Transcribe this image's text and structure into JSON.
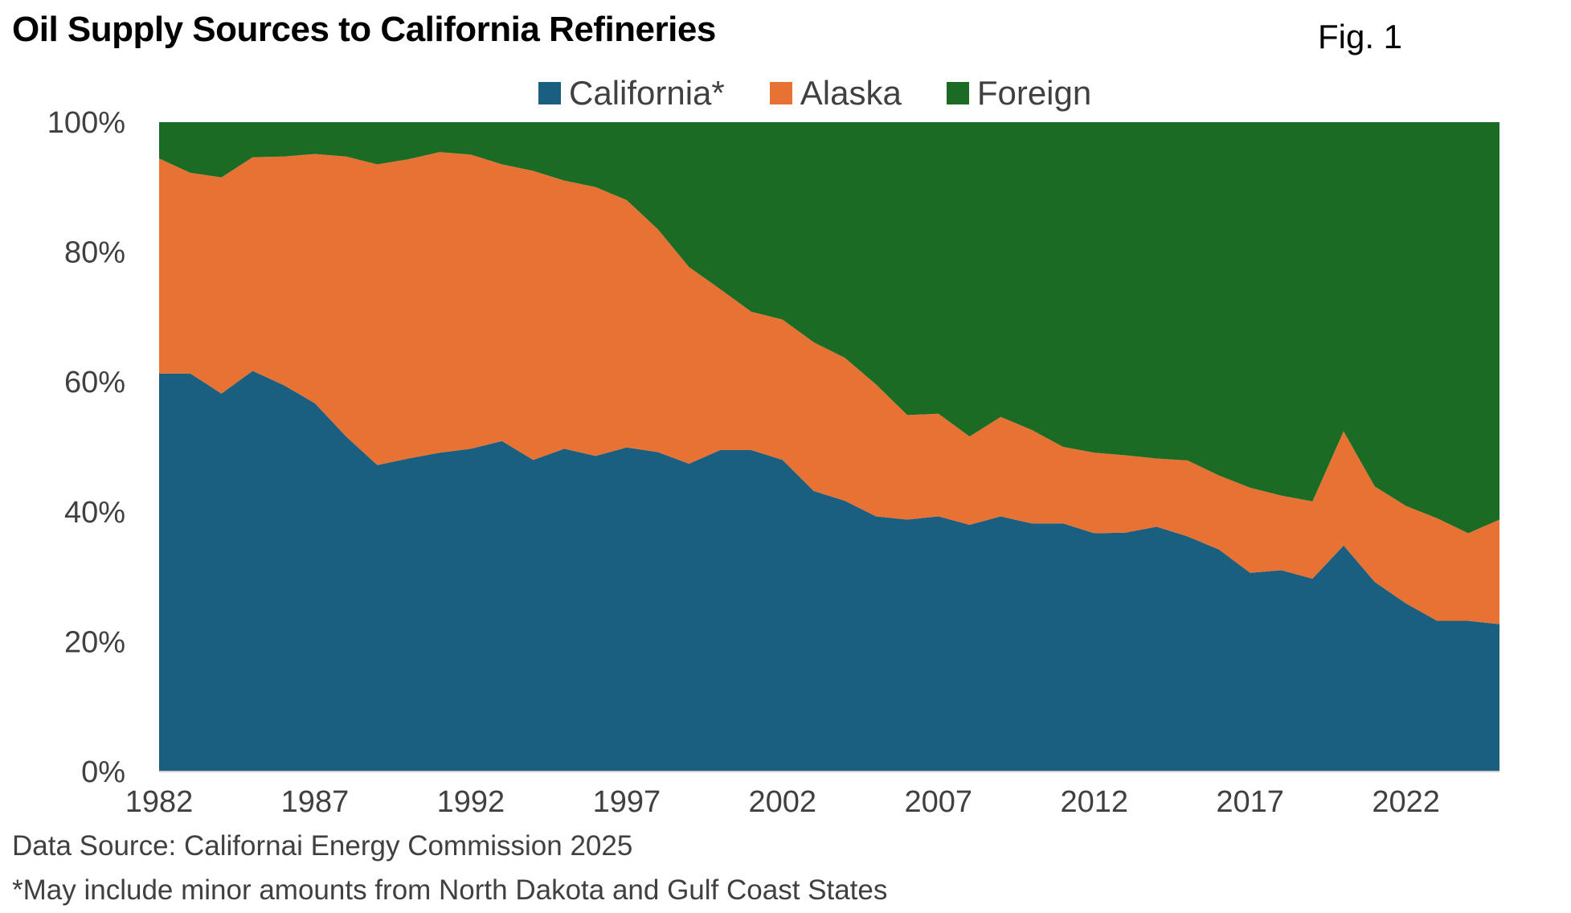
{
  "title": "Oil Supply Sources to California Refineries",
  "figure_label": "Fig. 1",
  "footnotes": {
    "source": "Data Source: Californai Energy Commission 2025",
    "note": "*May include minor amounts from North Dakota and Gulf Coast States"
  },
  "colors": {
    "california": "#1a5e80",
    "alaska": "#e87233",
    "foreign": "#1c6b25"
  },
  "chart_data": {
    "type": "area",
    "stacked": true,
    "title": "Oil Supply Sources to California Refineries",
    "x": [
      1982,
      1983,
      1984,
      1985,
      1986,
      1987,
      1988,
      1989,
      1990,
      1991,
      1992,
      1993,
      1994,
      1995,
      1996,
      1997,
      1998,
      1999,
      2000,
      2001,
      2002,
      2003,
      2004,
      2005,
      2006,
      2007,
      2008,
      2009,
      2010,
      2011,
      2012,
      2013,
      2014,
      2015,
      2016,
      2017,
      2018,
      2019,
      2020,
      2021,
      2022,
      2023,
      2024,
      2025
    ],
    "xticks": [
      "1982",
      "1987",
      "1992",
      "1997",
      "2002",
      "2007",
      "2012",
      "2017",
      "2022"
    ],
    "yticks": [
      "0%",
      "20%",
      "40%",
      "60%",
      "80%",
      "100%"
    ],
    "ylim": [
      0,
      100
    ],
    "legend": "top",
    "grid": false,
    "series": [
      {
        "name": "California*",
        "color": "#1a5e80",
        "values": [
          61.3,
          61.3,
          58.2,
          61.7,
          59.5,
          56.7,
          51.6,
          47.2,
          48.2,
          49.1,
          49.7,
          50.9,
          48.0,
          49.7,
          48.6,
          49.9,
          49.2,
          47.4,
          49.5,
          49.5,
          48.0,
          43.2,
          41.7,
          39.3,
          38.8,
          39.3,
          38.0,
          39.3,
          38.2,
          38.2,
          36.7,
          36.8,
          37.7,
          36.2,
          34.2,
          30.6,
          31.0,
          29.7,
          34.8,
          29.2,
          25.9,
          23.2,
          23.2,
          22.7
        ]
      },
      {
        "name": "Alaska",
        "color": "#e87233",
        "values": [
          33.1,
          30.9,
          33.3,
          32.9,
          35.2,
          38.4,
          43.1,
          46.3,
          46.1,
          46.3,
          45.3,
          42.6,
          44.5,
          41.3,
          41.4,
          38.1,
          34.3,
          30.3,
          24.8,
          21.3,
          21.6,
          22.9,
          22.0,
          20.3,
          16.1,
          15.8,
          13.6,
          15.3,
          14.4,
          11.8,
          12.4,
          11.9,
          10.5,
          11.7,
          11.4,
          13.1,
          11.5,
          11.9,
          17.6,
          14.7,
          15.0,
          15.8,
          13.5,
          16.1
        ]
      },
      {
        "name": "Foreign",
        "color": "#1c6b25",
        "values": [
          5.6,
          7.8,
          8.5,
          5.4,
          5.3,
          4.9,
          5.3,
          6.5,
          5.7,
          4.6,
          5.0,
          6.5,
          7.5,
          9.0,
          10.0,
          12.0,
          16.5,
          22.3,
          25.7,
          29.2,
          30.4,
          33.9,
          36.3,
          40.4,
          45.1,
          44.9,
          48.4,
          45.4,
          47.4,
          50.0,
          50.9,
          51.3,
          51.8,
          52.1,
          54.4,
          56.3,
          57.5,
          58.4,
          47.6,
          56.1,
          59.1,
          61.0,
          63.3,
          61.2
        ]
      }
    ]
  }
}
